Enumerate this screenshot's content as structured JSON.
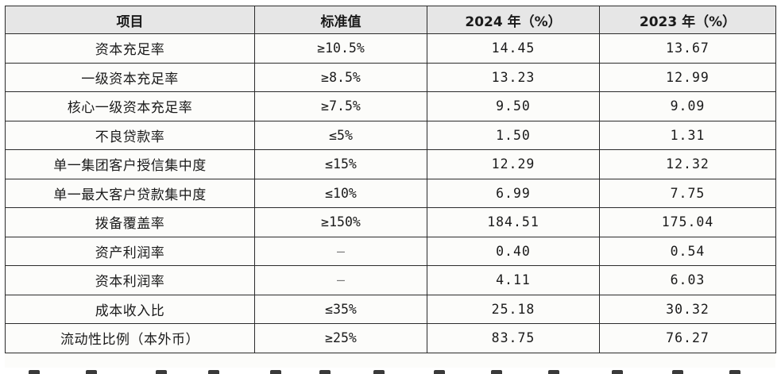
{
  "table": {
    "headers": {
      "item": "项目",
      "standard": "标准值",
      "y2024": "2024 年（%）",
      "y2023": "2023 年（%）"
    },
    "rows": [
      {
        "item": "资本充足率",
        "standard": "≥10.5%",
        "y2024": "14.45",
        "y2023": "13.67"
      },
      {
        "item": "一级资本充足率",
        "standard": "≥8.5%",
        "y2024": "13.23",
        "y2023": "12.99"
      },
      {
        "item": "核心一级资本充足率",
        "standard": "≥7.5%",
        "y2024": "9.50",
        "y2023": "9.09"
      },
      {
        "item": "不良贷款率",
        "standard": "≤5%",
        "y2024": "1.50",
        "y2023": "1.31"
      },
      {
        "item": "单一集团客户授信集中度",
        "standard": "≤15%",
        "y2024": "12.29",
        "y2023": "12.32"
      },
      {
        "item": "单一最大客户贷款集中度",
        "standard": "≤10%",
        "y2024": "6.99",
        "y2023": "7.75"
      },
      {
        "item": "拨备覆盖率",
        "standard": "≥150%",
        "y2024": "184.51",
        "y2023": "175.04"
      },
      {
        "item": "资产利润率",
        "standard": "–",
        "y2024": "0.40",
        "y2023": "0.54"
      },
      {
        "item": "资本利润率",
        "standard": "–",
        "y2024": "4.11",
        "y2023": "6.03"
      },
      {
        "item": "成本收入比",
        "standard": "≤35%",
        "y2024": "25.18",
        "y2023": "30.32"
      },
      {
        "item": "流动性比例（本外币）",
        "standard": "≥25%",
        "y2024": "83.75",
        "y2023": "76.27"
      }
    ]
  }
}
